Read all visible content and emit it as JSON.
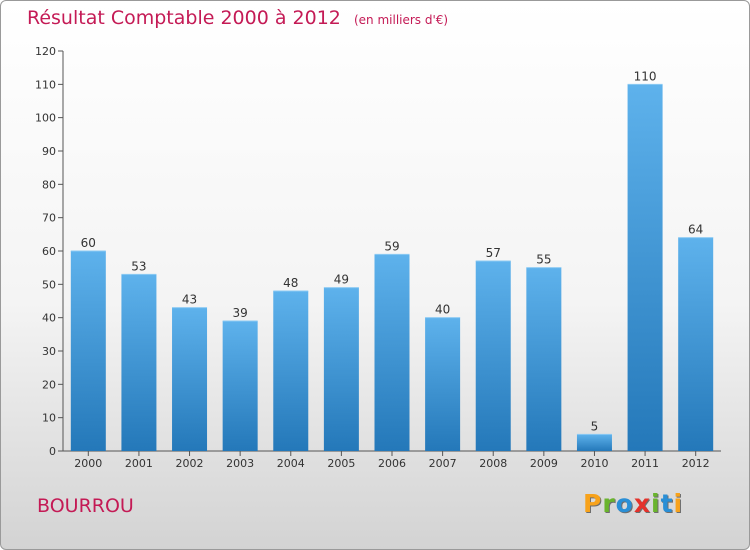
{
  "chart_data": {
    "type": "bar",
    "title": "Résultat Comptable 2000 à 2012",
    "subtitle": "(en milliers d'€)",
    "categories": [
      "2000",
      "2001",
      "2002",
      "2003",
      "2004",
      "2005",
      "2006",
      "2007",
      "2008",
      "2009",
      "2010",
      "2011",
      "2012"
    ],
    "values": [
      60,
      53,
      43,
      39,
      48,
      49,
      59,
      40,
      57,
      55,
      5,
      110,
      64
    ],
    "ylim": [
      0,
      120
    ],
    "yticks": [
      0,
      10,
      20,
      30,
      40,
      50,
      60,
      70,
      80,
      90,
      100,
      110,
      120
    ],
    "xlabel": "",
    "ylabel": "",
    "grid": false
  },
  "commune": "BOURROU",
  "logo": {
    "letters": [
      "P",
      "r",
      "o",
      "x",
      "i",
      "t",
      "i"
    ],
    "colors": [
      "#f7a21b",
      "#6ab42d",
      "#2a8fd6",
      "#e4322b",
      "#6ab42d",
      "#2a8fd6",
      "#f7a21b"
    ]
  },
  "colors": {
    "bar_top": "#5eb2ec",
    "bar_bottom": "#2478b9",
    "accent": "#c41a55"
  }
}
